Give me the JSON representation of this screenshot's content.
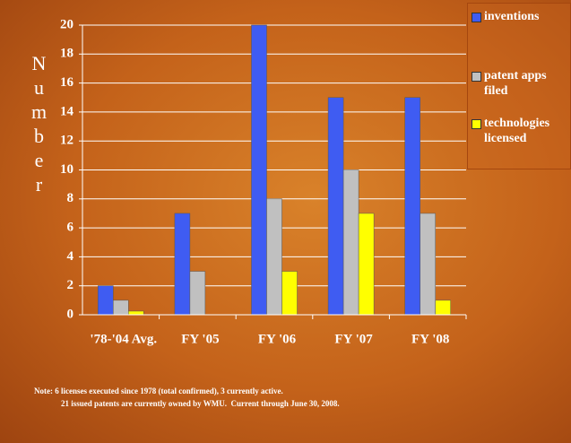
{
  "chart_data": {
    "type": "bar",
    "y_label": "Number",
    "categories": [
      "'78-'04 Avg.",
      "FY '05",
      "FY '06",
      "FY '07",
      "FY '08"
    ],
    "series": [
      {
        "name": "inventions",
        "color": "#3f5cf2",
        "values": [
          2,
          7,
          20,
          15,
          15
        ]
      },
      {
        "name": "patent apps filed",
        "color": "#c0c0c0",
        "values": [
          1,
          3,
          8,
          10,
          7
        ]
      },
      {
        "name": "technologies licensed",
        "color": "#ffff00",
        "values": [
          0.25,
          0,
          3,
          7,
          1
        ]
      }
    ],
    "ylim": [
      0,
      20
    ],
    "yticks": [
      0,
      2,
      4,
      6,
      8,
      10,
      12,
      14,
      16,
      18,
      20
    ],
    "grid": true,
    "notes": [
      "Note: 6 licenses executed since 1978 (total confirmed), 3 currently active.",
      "21 issued patents are currently owned by WMU.  Current through June 30, 2008."
    ]
  }
}
